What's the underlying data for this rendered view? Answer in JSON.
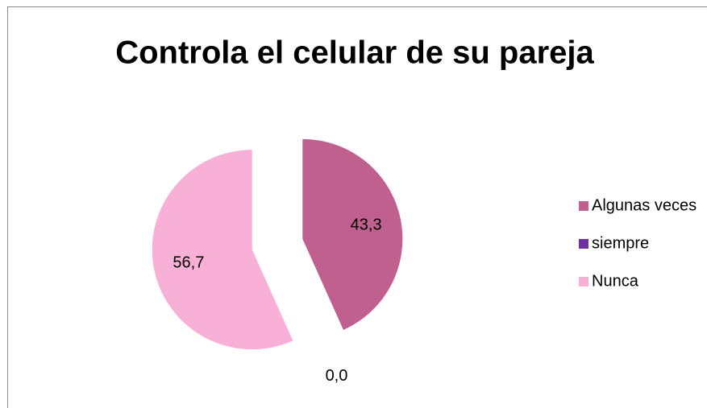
{
  "chart_data": {
    "type": "pie",
    "title": "Controla el celular de su pareja",
    "categories": [
      "Algunas veces",
      "siempre",
      "Nunca"
    ],
    "values": [
      43.3,
      0.0,
      56.7
    ],
    "value_labels": [
      "43,3",
      "0,0",
      "56,7"
    ],
    "colors": [
      "#c0608f",
      "#7030a0",
      "#f9b0d6"
    ],
    "legend": "right",
    "exploded": true
  }
}
